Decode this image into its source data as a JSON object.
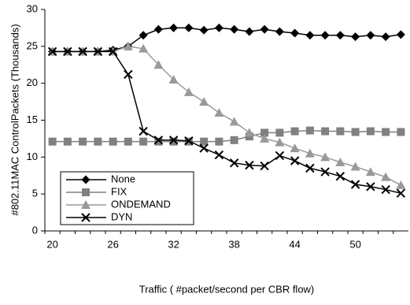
{
  "chart_data": {
    "type": "line",
    "xlabel": "Traffic ( #packet/second per CBR flow)",
    "ylabel": "#802.11MAC ControlPackets (Thousands)",
    "categories": [
      "20",
      null,
      null,
      null,
      "26",
      null,
      null,
      null,
      "32",
      null,
      null,
      null,
      "38",
      null,
      null,
      null,
      "44",
      null,
      null,
      null,
      "50",
      null,
      null,
      null
    ],
    "ylim": [
      0,
      30
    ],
    "yticks": [
      0,
      5,
      10,
      15,
      20,
      25,
      30
    ],
    "legend": "lower-left",
    "series": [
      {
        "name": "None",
        "color": "#000000",
        "marker": "diamond",
        "values": [
          24.3,
          24.3,
          24.3,
          24.3,
          24.5,
          25.0,
          26.5,
          27.3,
          27.5,
          27.5,
          27.2,
          27.5,
          27.3,
          27.0,
          27.3,
          27.0,
          26.8,
          26.5,
          26.5,
          26.5,
          26.3,
          26.5,
          26.3,
          26.6
        ]
      },
      {
        "name": "FIX",
        "color": "#808080",
        "marker": "square",
        "values": [
          12.1,
          12.1,
          12.1,
          12.1,
          12.1,
          12.1,
          12.1,
          12.1,
          12.1,
          12.1,
          12.1,
          12.1,
          12.3,
          12.8,
          13.3,
          13.3,
          13.5,
          13.6,
          13.5,
          13.5,
          13.4,
          13.5,
          13.4,
          13.4
        ]
      },
      {
        "name": "ONDEMAND",
        "color": "#999999",
        "marker": "triangle",
        "values": [
          24.3,
          24.3,
          24.3,
          24.3,
          24.3,
          25.0,
          24.7,
          22.5,
          20.5,
          18.8,
          17.5,
          16.0,
          14.8,
          13.3,
          12.5,
          12.0,
          11.2,
          10.5,
          10.0,
          9.3,
          8.7,
          8.0,
          7.3,
          6.2
        ]
      },
      {
        "name": "DYN",
        "color": "#000000",
        "marker": "x",
        "values": [
          24.3,
          24.3,
          24.3,
          24.3,
          24.3,
          21.2,
          13.5,
          12.3,
          12.3,
          12.2,
          11.2,
          10.3,
          9.2,
          8.9,
          8.8,
          10.2,
          9.5,
          8.5,
          8.0,
          7.4,
          6.3,
          6.0,
          5.6,
          5.1
        ]
      }
    ]
  }
}
